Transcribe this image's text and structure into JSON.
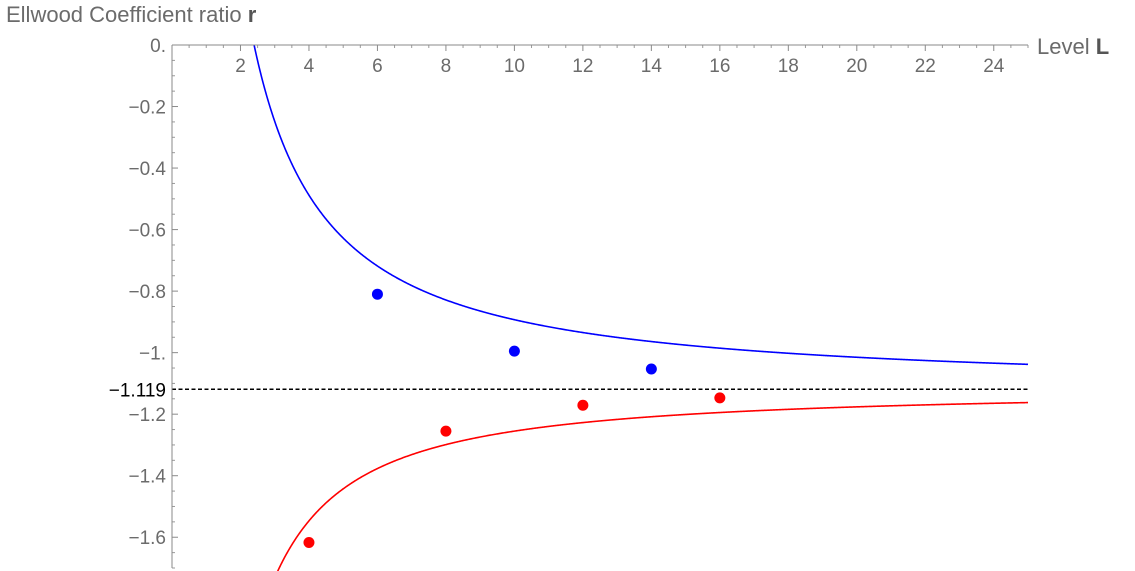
{
  "chart_data": {
    "type": "line",
    "ylabel": "Ellwood Coefficient ratio",
    "ylabel_symbol": "r",
    "xlabel": "Level",
    "xlabel_symbol": "L",
    "xlim": [
      0,
      25
    ],
    "ylim": [
      -1.7,
      0
    ],
    "x_ticks": [
      2,
      4,
      6,
      8,
      10,
      12,
      14,
      16,
      18,
      20,
      22,
      24
    ],
    "x_tick_labels": [
      "2",
      "4",
      "6",
      "8",
      "10",
      "12",
      "14",
      "16",
      "18",
      "20",
      "22",
      "24"
    ],
    "y_ticks": [
      0,
      -0.2,
      -0.4,
      -0.6,
      -0.8,
      -1.0,
      -1.2,
      -1.4,
      -1.6
    ],
    "y_tick_labels": [
      "0.",
      "−0.2",
      "−0.4",
      "−0.6",
      "−0.8",
      "−1.",
      "−1.2",
      "−1.4",
      "−1.6"
    ],
    "reference_line": {
      "y": -1.119,
      "label": "−1.119",
      "style": "dashed",
      "color": "#000000"
    },
    "series": [
      {
        "color": "#0000ff",
        "curve": {
          "asymptote": -1.119,
          "coefficient": 2.98,
          "power": 1.12,
          "x_start": 2.4
        },
        "points": [
          {
            "x": 6,
            "y": -0.81
          },
          {
            "x": 10,
            "y": -0.995
          },
          {
            "x": 14,
            "y": -1.053
          }
        ]
      },
      {
        "color": "#ff0000",
        "curve": {
          "asymptote": -1.119,
          "coefficient": -2.42,
          "power": 1.25,
          "x_start": 3.0
        },
        "points": [
          {
            "x": 4,
            "y": -1.617
          },
          {
            "x": 8,
            "y": -1.255
          },
          {
            "x": 12,
            "y": -1.171
          },
          {
            "x": 16,
            "y": -1.147
          }
        ]
      }
    ],
    "grid": false,
    "legend": "none"
  }
}
